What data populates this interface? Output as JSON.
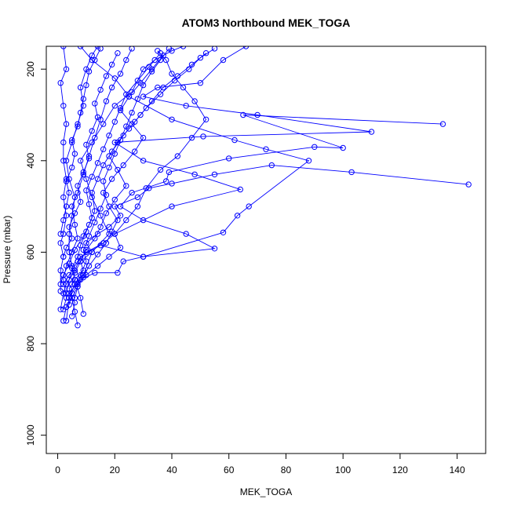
{
  "chart_data": {
    "type": "scatter",
    "title": "ATOM3 Northbound MEK_TOGA",
    "xlabel": "MEK_TOGA",
    "ylabel": "Pressure (mbar)",
    "xlim": [
      -4,
      150
    ],
    "ylim": [
      1040,
      150
    ],
    "y_reversed": true,
    "x_ticks": [
      0,
      20,
      40,
      60,
      80,
      100,
      120,
      140
    ],
    "y_ticks": [
      200,
      400,
      600,
      800,
      1000
    ],
    "grid": false,
    "legend": "none",
    "marker": "open-circle",
    "series_color": "#0000ff",
    "series": [
      {
        "points": [
          [
            2,
            750
          ],
          [
            3,
            720
          ],
          [
            5,
            700
          ],
          [
            4,
            680
          ],
          [
            6,
            660
          ],
          [
            9,
            640
          ],
          [
            8,
            620
          ],
          [
            12,
            600
          ],
          [
            10,
            580
          ],
          [
            14,
            560
          ],
          [
            18,
            545
          ],
          [
            22,
            520
          ],
          [
            20,
            500
          ],
          [
            28,
            480
          ],
          [
            32,
            460
          ],
          [
            40,
            450
          ],
          [
            55,
            430
          ],
          [
            75,
            410
          ],
          [
            103,
            425
          ],
          [
            144,
            452
          ]
        ]
      },
      {
        "points": [
          [
            1,
            725
          ],
          [
            2,
            690
          ],
          [
            3,
            670
          ],
          [
            6,
            640
          ],
          [
            8,
            610
          ],
          [
            15,
            585
          ],
          [
            30,
            610
          ],
          [
            55,
            592
          ],
          [
            45,
            560
          ],
          [
            30,
            530
          ],
          [
            22,
            500
          ],
          [
            26,
            470
          ],
          [
            38,
            445
          ],
          [
            39,
            425
          ],
          [
            60,
            395
          ],
          [
            90,
            370
          ],
          [
            100,
            372
          ],
          [
            65,
            300
          ],
          [
            135,
            320
          ]
        ]
      },
      {
        "points": [
          [
            2,
            670
          ],
          [
            4,
            650
          ],
          [
            7,
            620
          ],
          [
            10,
            600
          ],
          [
            16,
            580
          ],
          [
            20,
            560
          ],
          [
            40,
            500
          ],
          [
            64,
            463
          ],
          [
            48,
            430
          ],
          [
            30,
            400
          ],
          [
            20,
            360
          ],
          [
            51,
            347
          ],
          [
            110,
            337
          ],
          [
            70,
            300
          ],
          [
            45,
            280
          ],
          [
            30,
            260
          ],
          [
            35,
            240
          ],
          [
            50,
            230
          ],
          [
            58,
            180
          ],
          [
            66,
            150
          ]
        ]
      },
      {
        "points": [
          [
            5,
            740
          ],
          [
            6,
            710
          ],
          [
            4,
            690
          ],
          [
            8,
            660
          ],
          [
            13,
            645
          ],
          [
            21,
            645
          ],
          [
            23,
            620
          ],
          [
            30,
            610
          ],
          [
            58,
            557
          ],
          [
            63,
            520
          ],
          [
            67,
            500
          ],
          [
            88,
            400
          ],
          [
            73,
            375
          ],
          [
            62,
            355
          ],
          [
            40,
            310
          ],
          [
            25,
            260
          ],
          [
            20,
            220
          ],
          [
            12,
            180
          ],
          [
            8,
            150
          ]
        ]
      },
      {
        "points": [
          [
            3,
            750
          ],
          [
            4,
            700
          ],
          [
            6,
            670
          ],
          [
            9,
            650
          ],
          [
            12,
            600
          ],
          [
            18,
            560
          ],
          [
            15,
            520
          ],
          [
            12,
            480
          ],
          [
            10,
            440
          ],
          [
            8,
            400
          ],
          [
            12,
            360
          ],
          [
            16,
            320
          ],
          [
            20,
            280
          ],
          [
            26,
            250
          ],
          [
            30,
            200
          ],
          [
            34,
            180
          ],
          [
            40,
            160
          ],
          [
            44,
            150
          ]
        ]
      },
      {
        "points": [
          [
            9,
            735
          ],
          [
            8,
            700
          ],
          [
            6,
            660
          ],
          [
            5,
            630
          ],
          [
            4,
            600
          ],
          [
            4,
            560
          ],
          [
            5,
            520
          ],
          [
            6,
            480
          ],
          [
            4,
            440
          ],
          [
            3,
            400
          ],
          [
            5,
            360
          ],
          [
            7,
            320
          ],
          [
            9,
            280
          ],
          [
            8,
            240
          ],
          [
            10,
            200
          ],
          [
            12,
            170
          ],
          [
            14,
            150
          ]
        ]
      },
      {
        "points": [
          [
            1,
            685
          ],
          [
            1,
            640
          ],
          [
            2,
            610
          ],
          [
            1,
            580
          ],
          [
            2,
            560
          ],
          [
            3,
            520
          ],
          [
            2,
            480
          ],
          [
            3,
            440
          ],
          [
            2,
            400
          ],
          [
            2,
            360
          ],
          [
            3,
            320
          ],
          [
            2,
            280
          ],
          [
            1,
            230
          ],
          [
            3,
            200
          ],
          [
            2,
            150
          ]
        ]
      },
      {
        "points": [
          [
            2,
            725
          ],
          [
            3,
            700
          ],
          [
            2,
            660
          ],
          [
            3,
            630
          ],
          [
            5,
            600
          ],
          [
            7,
            570
          ],
          [
            6,
            540
          ],
          [
            5,
            500
          ],
          [
            7,
            470
          ],
          [
            9,
            430
          ],
          [
            11,
            390
          ],
          [
            13,
            350
          ],
          [
            15,
            310
          ],
          [
            17,
            270
          ],
          [
            19,
            240
          ],
          [
            22,
            210
          ],
          [
            24,
            180
          ],
          [
            26,
            155
          ]
        ]
      },
      {
        "points": [
          [
            4,
            715
          ],
          [
            5,
            690
          ],
          [
            7,
            670
          ],
          [
            10,
            650
          ],
          [
            14,
            630
          ],
          [
            18,
            610
          ],
          [
            22,
            590
          ],
          [
            20,
            560
          ],
          [
            24,
            530
          ],
          [
            28,
            500
          ],
          [
            31,
            460
          ],
          [
            36,
            420
          ],
          [
            42,
            390
          ],
          [
            47,
            350
          ],
          [
            52,
            310
          ],
          [
            48,
            270
          ],
          [
            44,
            240
          ],
          [
            40,
            210
          ],
          [
            38,
            180
          ],
          [
            35,
            160
          ]
        ]
      },
      {
        "points": [
          [
            1,
            670
          ],
          [
            2,
            650
          ],
          [
            4,
            625
          ],
          [
            6,
            595
          ],
          [
            9,
            565
          ],
          [
            11,
            540
          ],
          [
            13,
            510
          ],
          [
            12,
            470
          ],
          [
            14,
            440
          ],
          [
            16,
            410
          ],
          [
            19,
            380
          ],
          [
            23,
            345
          ],
          [
            27,
            315
          ],
          [
            31,
            285
          ],
          [
            36,
            255
          ],
          [
            41,
            225
          ],
          [
            46,
            200
          ],
          [
            50,
            175
          ],
          [
            55,
            155
          ]
        ]
      },
      {
        "points": [
          [
            3,
            690
          ],
          [
            4,
            660
          ],
          [
            5,
            635
          ],
          [
            7,
            610
          ],
          [
            8,
            585
          ],
          [
            10,
            555
          ],
          [
            12,
            525
          ],
          [
            11,
            495
          ],
          [
            10,
            465
          ],
          [
            12,
            435
          ],
          [
            14,
            405
          ],
          [
            16,
            375
          ],
          [
            18,
            345
          ],
          [
            20,
            315
          ],
          [
            22,
            285
          ],
          [
            24,
            255
          ],
          [
            28,
            225
          ],
          [
            32,
            195
          ],
          [
            36,
            165
          ]
        ]
      },
      {
        "points": [
          [
            2,
            610
          ],
          [
            3,
            590
          ],
          [
            5,
            570
          ],
          [
            4,
            545
          ],
          [
            6,
            515
          ],
          [
            8,
            490
          ],
          [
            7,
            455
          ],
          [
            9,
            425
          ],
          [
            11,
            395
          ],
          [
            10,
            365
          ],
          [
            12,
            335
          ],
          [
            14,
            305
          ],
          [
            13,
            275
          ],
          [
            15,
            245
          ],
          [
            17,
            215
          ],
          [
            19,
            190
          ],
          [
            21,
            165
          ]
        ]
      },
      {
        "points": [
          [
            6,
            700
          ],
          [
            7,
            675
          ],
          [
            9,
            655
          ],
          [
            11,
            630
          ],
          [
            14,
            605
          ],
          [
            17,
            580
          ],
          [
            19,
            555
          ],
          [
            21,
            530
          ],
          [
            18,
            500
          ],
          [
            16,
            470
          ],
          [
            19,
            440
          ],
          [
            23,
            410
          ],
          [
            27,
            380
          ],
          [
            30,
            350
          ],
          [
            26,
            320
          ],
          [
            22,
            290
          ],
          [
            25,
            260
          ],
          [
            29,
            230
          ],
          [
            33,
            200
          ],
          [
            37,
            170
          ]
        ]
      },
      {
        "points": [
          [
            1,
            560
          ],
          [
            2,
            530
          ],
          [
            3,
            500
          ],
          [
            4,
            470
          ],
          [
            3,
            445
          ],
          [
            5,
            415
          ],
          [
            6,
            385
          ],
          [
            5,
            355
          ],
          [
            7,
            325
          ],
          [
            8,
            295
          ],
          [
            9,
            265
          ],
          [
            10,
            235
          ],
          [
            11,
            205
          ],
          [
            13,
            180
          ],
          [
            15,
            155
          ]
        ]
      },
      {
        "points": [
          [
            5,
            670
          ],
          [
            6,
            645
          ],
          [
            8,
            620
          ],
          [
            10,
            595
          ],
          [
            13,
            570
          ],
          [
            15,
            545
          ],
          [
            17,
            515
          ],
          [
            20,
            485
          ],
          [
            24,
            455
          ],
          [
            21,
            420
          ],
          [
            18,
            390
          ],
          [
            21,
            360
          ],
          [
            25,
            330
          ],
          [
            29,
            300
          ],
          [
            33,
            270
          ],
          [
            37,
            240
          ],
          [
            42,
            215
          ],
          [
            47,
            190
          ],
          [
            52,
            165
          ]
        ]
      },
      {
        "points": [
          [
            7,
            760
          ],
          [
            6,
            730
          ],
          [
            5,
            700
          ],
          [
            7,
            675
          ],
          [
            8,
            650
          ],
          [
            10,
            620
          ],
          [
            9,
            595
          ],
          [
            11,
            565
          ],
          [
            13,
            535
          ],
          [
            15,
            505
          ],
          [
            17,
            475
          ],
          [
            16,
            445
          ],
          [
            18,
            415
          ],
          [
            20,
            385
          ],
          [
            22,
            355
          ],
          [
            24,
            325
          ],
          [
            26,
            295
          ],
          [
            28,
            265
          ],
          [
            30,
            235
          ],
          [
            33,
            205
          ],
          [
            36,
            180
          ],
          [
            39,
            155
          ]
        ]
      }
    ]
  }
}
